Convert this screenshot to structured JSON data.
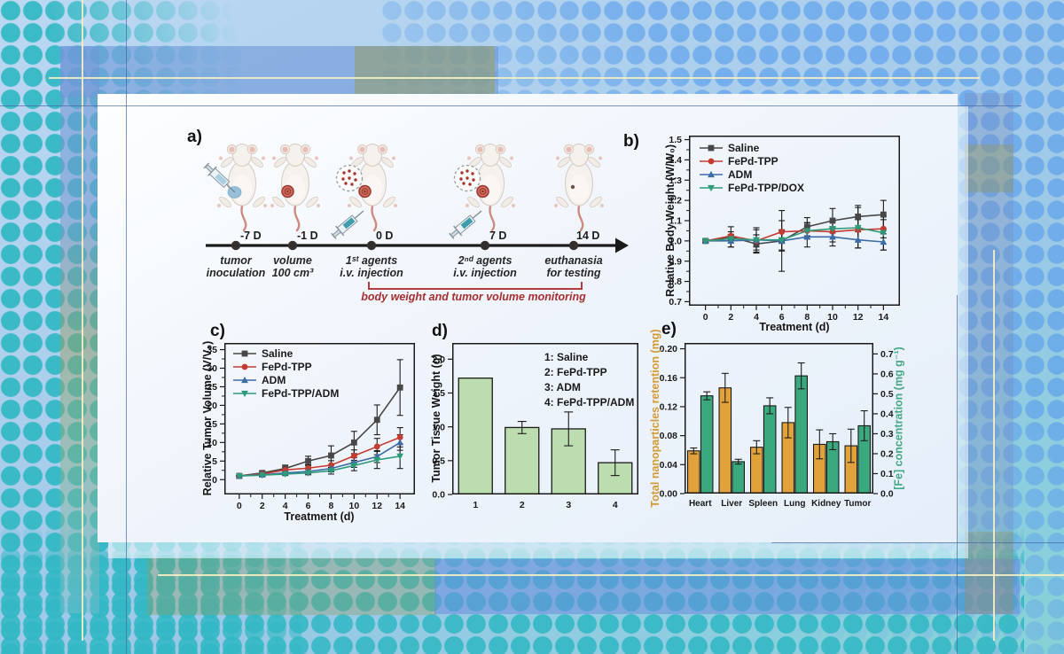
{
  "panel_letters": {
    "a": "a)",
    "b": "b)",
    "c": "c)",
    "d": "d)",
    "e": "e)"
  },
  "panel_a": {
    "events": [
      {
        "day": "-7 D",
        "caption_line1": "tumor",
        "caption_line2": "inoculation"
      },
      {
        "day": "-1 D",
        "caption_line1": "volume",
        "caption_line2": "100 cm³"
      },
      {
        "day": "0 D",
        "caption_line1": "1ˢᵗ agents",
        "caption_line2": "i.v. injection"
      },
      {
        "day": "7 D",
        "caption_line1": "2ⁿᵈ agents",
        "caption_line2": "i.v. injection"
      },
      {
        "day": "14 D",
        "caption_line1": "euthanasia",
        "caption_line2": "for testing"
      }
    ],
    "monitor_note": "body weight and tumor volume monitoring"
  },
  "chart_data": [
    {
      "id": "chart-b",
      "type": "line",
      "xlabel": "Treatment (d)",
      "ylabel": "Relative Body Weight (W/W₀)",
      "x": [
        0,
        2,
        4,
        6,
        8,
        10,
        12,
        14
      ],
      "xlim": [
        -1.3,
        15.3
      ],
      "ylim": [
        0.68,
        1.52
      ],
      "xticks": [
        0,
        2,
        4,
        6,
        8,
        10,
        12,
        14
      ],
      "xminor": [
        1,
        3,
        5,
        7,
        9,
        11,
        13
      ],
      "yticks": [
        0.7,
        0.8,
        0.9,
        1.0,
        1.1,
        1.2,
        1.3,
        1.4,
        1.5
      ],
      "yminor": [
        0.75,
        0.85,
        0.95,
        1.05,
        1.15,
        1.25,
        1.35,
        1.45
      ],
      "ytick_decimals": 1,
      "legend_pos": [
        12,
        14
      ],
      "series": [
        {
          "name": "Saline",
          "color": "#474747",
          "marker": "square",
          "values": [
            1.0,
            1.02,
            0.985,
            1.0,
            1.07,
            1.1,
            1.12,
            1.13
          ],
          "err": [
            0.008,
            0.05,
            0.045,
            0.15,
            0.045,
            0.06,
            0.055,
            0.07
          ]
        },
        {
          "name": "FePd-TPP",
          "color": "#c63a30",
          "marker": "circle",
          "values": [
            1.0,
            1.025,
            1.0,
            1.045,
            1.05,
            1.045,
            1.055,
            1.06
          ],
          "err": [
            0.008,
            0.02,
            0.03,
            0.055,
            0.04,
            0.05,
            0.05,
            0.045
          ]
        },
        {
          "name": "ADM",
          "color": "#3c6ca8",
          "marker": "triangle-up",
          "values": [
            1.0,
            1.0,
            1.005,
            1.0,
            1.02,
            1.02,
            1.005,
            0.995
          ],
          "err": [
            0.008,
            0.03,
            0.06,
            0.05,
            0.05,
            0.045,
            0.04,
            0.04
          ]
        },
        {
          "name": "FePd-TPP/DOX",
          "color": "#2e9b78",
          "marker": "triangle-down",
          "values": [
            1.0,
            1.01,
            1.005,
            1.005,
            1.05,
            1.06,
            1.065,
            1.04
          ],
          "err": [
            0.008,
            0.02,
            0.05,
            0.05,
            0.04,
            0.04,
            0.1,
            0.085
          ]
        }
      ]
    },
    {
      "id": "chart-c",
      "type": "line",
      "xlabel": "Treatment (d)",
      "ylabel": "Relative Tumor Volume (V/V₀)",
      "x": [
        0,
        2,
        4,
        6,
        8,
        10,
        12,
        14
      ],
      "xlim": [
        -1.3,
        15.3
      ],
      "ylim": [
        -4,
        36.8
      ],
      "xticks": [
        0,
        2,
        4,
        6,
        8,
        10,
        12,
        14
      ],
      "xminor": [
        1,
        3,
        5,
        7,
        9,
        11,
        13
      ],
      "yticks": [
        0,
        5,
        10,
        15,
        20,
        25,
        30,
        35
      ],
      "yminor": [
        2.5,
        7.5,
        12.5,
        17.5,
        22.5,
        27.5,
        32.5
      ],
      "ytick_decimals": 0,
      "legend_pos": [
        10,
        12
      ],
      "series": [
        {
          "name": "Saline",
          "color": "#474747",
          "marker": "square",
          "values": [
            1,
            1.8,
            3.0,
            5.0,
            6.5,
            10.0,
            16.1,
            24.8
          ],
          "err": [
            0.1,
            0.5,
            0.9,
            1.3,
            2.6,
            3.0,
            4.0,
            7.5
          ]
        },
        {
          "name": "FePd-TPP",
          "color": "#c63a30",
          "marker": "circle",
          "values": [
            1,
            1.5,
            2.6,
            3.1,
            3.9,
            6.4,
            8.9,
            11.4
          ],
          "err": [
            0.1,
            0.5,
            0.7,
            0.9,
            1.2,
            1.6,
            2.2,
            2.6
          ]
        },
        {
          "name": "ADM",
          "color": "#3c6ca8",
          "marker": "triangle-up",
          "values": [
            1,
            1.3,
            1.8,
            2.2,
            3.0,
            4.6,
            6.2,
            10.0
          ],
          "err": [
            0.1,
            0.4,
            0.5,
            0.6,
            0.9,
            1.3,
            1.6,
            2.1
          ]
        },
        {
          "name": "FePd-TPP/ADM",
          "color": "#2e9b78",
          "marker": "triangle-down",
          "values": [
            1,
            1.2,
            1.5,
            1.8,
            2.4,
            3.8,
            5.3,
            6.3
          ],
          "err": [
            0.1,
            0.3,
            0.4,
            0.5,
            0.9,
            1.4,
            2.3,
            3.3
          ]
        }
      ]
    },
    {
      "id": "chart-d",
      "type": "bar",
      "ylabel": "Tumor Tissue Weight (g)",
      "categories": [
        "1",
        "2",
        "3",
        "4"
      ],
      "values": [
        1.72,
        0.99,
        0.97,
        0.47
      ],
      "err": [
        0,
        0.09,
        0.25,
        0.19
      ],
      "bar_color": "#bcddb0",
      "bar_edge": "#1a1a1a",
      "ylim": [
        0,
        2.24
      ],
      "yticks": [
        0.0,
        0.5,
        1.0,
        1.5,
        2.0
      ],
      "ytick_decimals": 1,
      "legend_lines": [
        "1: Saline",
        "2: FePd-TPP",
        "3: ADM",
        "4: FePd-TPP/ADM"
      ],
      "legend_pos": [
        104,
        20
      ]
    },
    {
      "id": "chart-e",
      "type": "grouped-bar",
      "categories": [
        "Heart",
        "Liver",
        "Spleen",
        "Lung",
        "Kidney",
        "Tumor"
      ],
      "ylabel_left": "Total nanoparticles retention (mg)",
      "ylabel_right": "[Fe] concentration (mg g⁻¹)",
      "ylabel_left_color": "#d49a33",
      "ylabel_right_color": "#46a886",
      "ylim_left": [
        0,
        0.208
      ],
      "yticks_left": [
        0.0,
        0.04,
        0.08,
        0.12,
        0.16,
        0.2
      ],
      "ytick_left_decimals": 2,
      "ylim_right": [
        0,
        0.755
      ],
      "yticks_right": [
        0.0,
        0.1,
        0.2,
        0.3,
        0.4,
        0.5,
        0.6,
        0.7
      ],
      "ytick_right_decimals": 1,
      "series": [
        {
          "name": "Total nanoparticles retention (mg)",
          "axis": "left",
          "color": "#e2a23b",
          "values": [
            0.059,
            0.146,
            0.064,
            0.098,
            0.068,
            0.066
          ],
          "err": [
            0.004,
            0.02,
            0.009,
            0.021,
            0.02,
            0.023
          ]
        },
        {
          "name": "[Fe] concentration (mg g⁻¹)",
          "axis": "right",
          "color": "#3aa97e",
          "values": [
            0.49,
            0.16,
            0.44,
            0.59,
            0.26,
            0.34
          ],
          "err": [
            0.02,
            0.012,
            0.04,
            0.065,
            0.04,
            0.075
          ]
        }
      ]
    }
  ]
}
